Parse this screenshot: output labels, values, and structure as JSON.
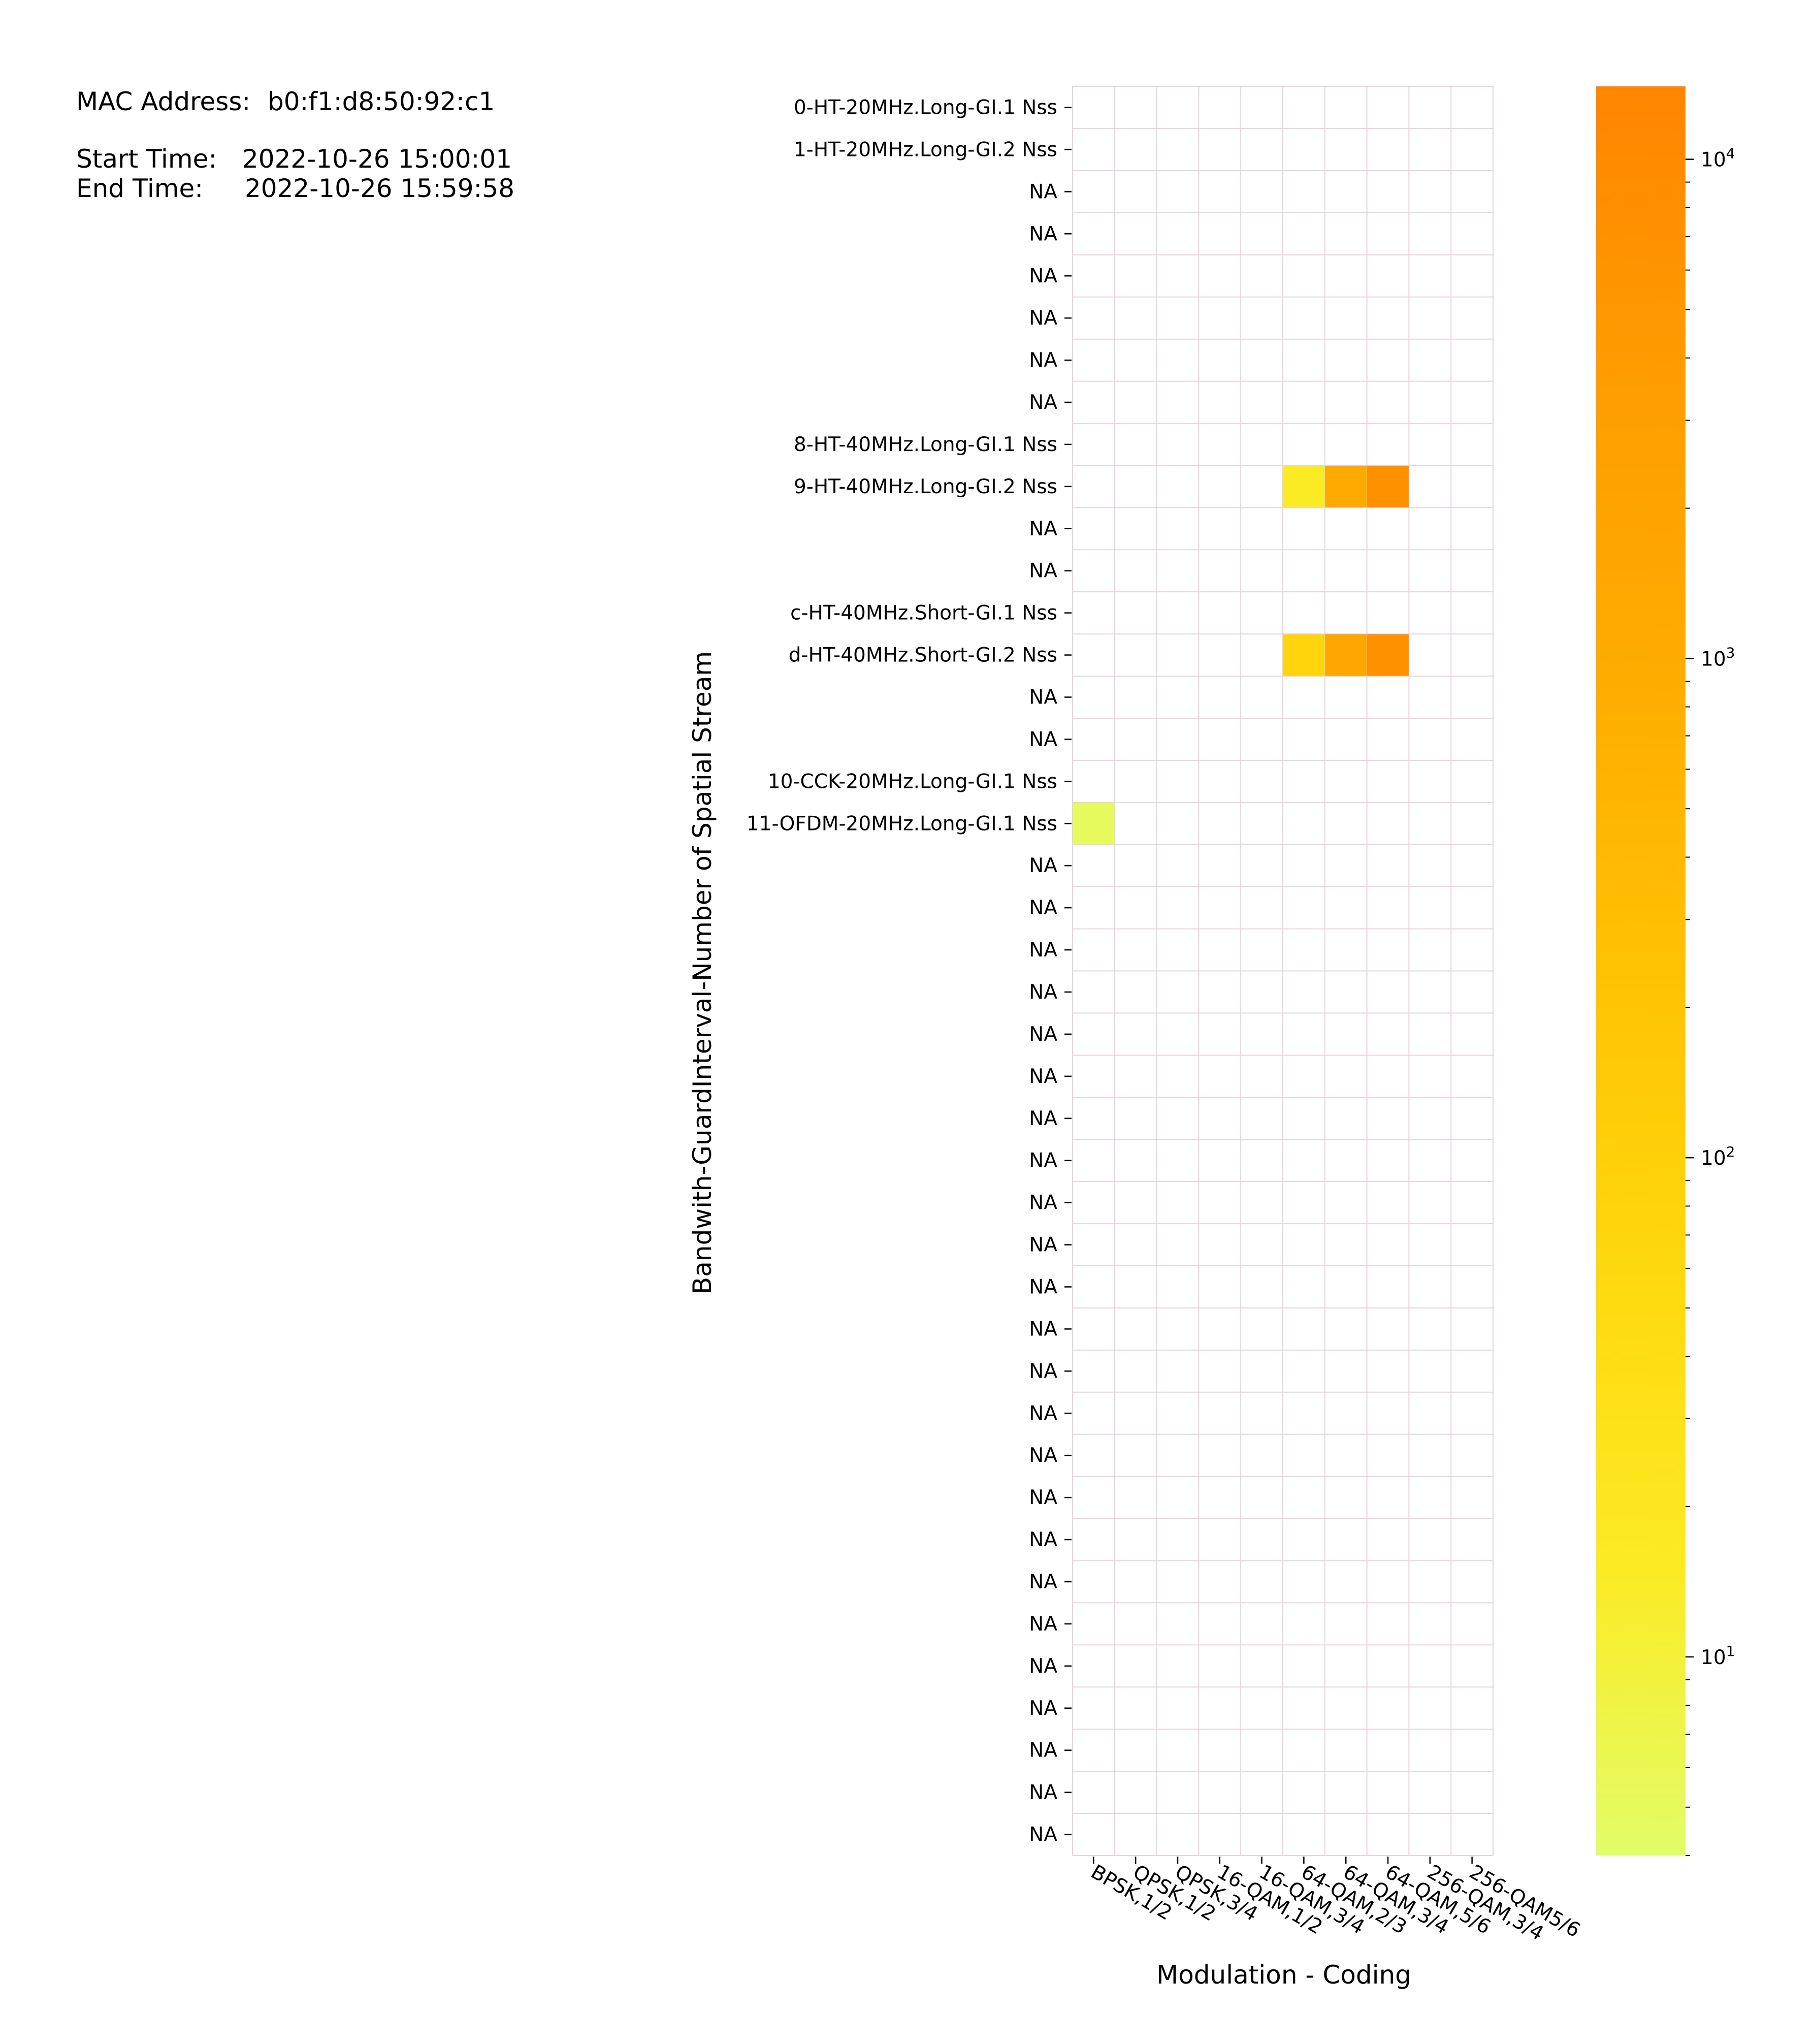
{
  "info": {
    "mac_label": "MAC Address:",
    "mac_value": "b0:f1:d8:50:92:c1",
    "start_label": "Start Time:",
    "start_value": "2022-10-26 15:00:01",
    "end_label": "End Time:",
    "end_value": "2022-10-26 15:59:58"
  },
  "chart_data": {
    "type": "heatmap",
    "title": "",
    "xlabel": "Modulation - Coding",
    "ylabel": "Bandwith-GuardInterval-Number of Spatial Stream",
    "x_categories": [
      "BPSK,1/2",
      "QPSK,1/2",
      "QPSK,3/4",
      "16-QAM,1/2",
      "16-QAM,3/4",
      "64-QAM,2/3",
      "64-QAM,3/4",
      "64-QAM,5/6",
      "256-QAM,3/4",
      "256-QAM5/6"
    ],
    "y_categories": [
      "0-HT-20MHz.Long-GI.1 Nss",
      "1-HT-20MHz.Long-GI.2 Nss",
      "NA",
      "NA",
      "NA",
      "NA",
      "NA",
      "NA",
      "8-HT-40MHz.Long-GI.1 Nss",
      "9-HT-40MHz.Long-GI.2 Nss",
      "NA",
      "NA",
      "c-HT-40MHz.Short-GI.1 Nss",
      "d-HT-40MHz.Short-GI.2 Nss",
      "NA",
      "NA",
      "10-CCK-20MHz.Long-GI.1 Nss",
      "11-OFDM-20MHz.Long-GI.1 Nss",
      "NA",
      "NA",
      "NA",
      "NA",
      "NA",
      "NA",
      "NA",
      "NA",
      "NA",
      "NA",
      "NA",
      "NA",
      "NA",
      "NA",
      "NA",
      "NA",
      "NA",
      "NA",
      "NA",
      "NA",
      "NA",
      "NA",
      "NA",
      "NA"
    ],
    "cells": [
      {
        "row": 9,
        "col": 5,
        "value": 15
      },
      {
        "row": 9,
        "col": 6,
        "value": 1200
      },
      {
        "row": 9,
        "col": 7,
        "value": 7500
      },
      {
        "row": 13,
        "col": 5,
        "value": 80
      },
      {
        "row": 13,
        "col": 6,
        "value": 1500
      },
      {
        "row": 13,
        "col": 7,
        "value": 7000
      },
      {
        "row": 17,
        "col": 0,
        "value": 5
      }
    ],
    "colorbar": {
      "scale": "log",
      "range": [
        4,
        14000
      ],
      "ticks": [
        {
          "value": 10,
          "base": "10",
          "exp": "1"
        },
        {
          "value": 100,
          "base": "10",
          "exp": "2"
        },
        {
          "value": 1000,
          "base": "10",
          "exp": "3"
        },
        {
          "value": 10000,
          "base": "10",
          "exp": "4"
        }
      ],
      "colormap": [
        "#e2fd68",
        "#fcea22",
        "#fed80e",
        "#ffc203",
        "#feac00",
        "#fe9d00",
        "#ff8500"
      ]
    },
    "grid_color": "#e6d3df",
    "legend": "colorbar right"
  }
}
